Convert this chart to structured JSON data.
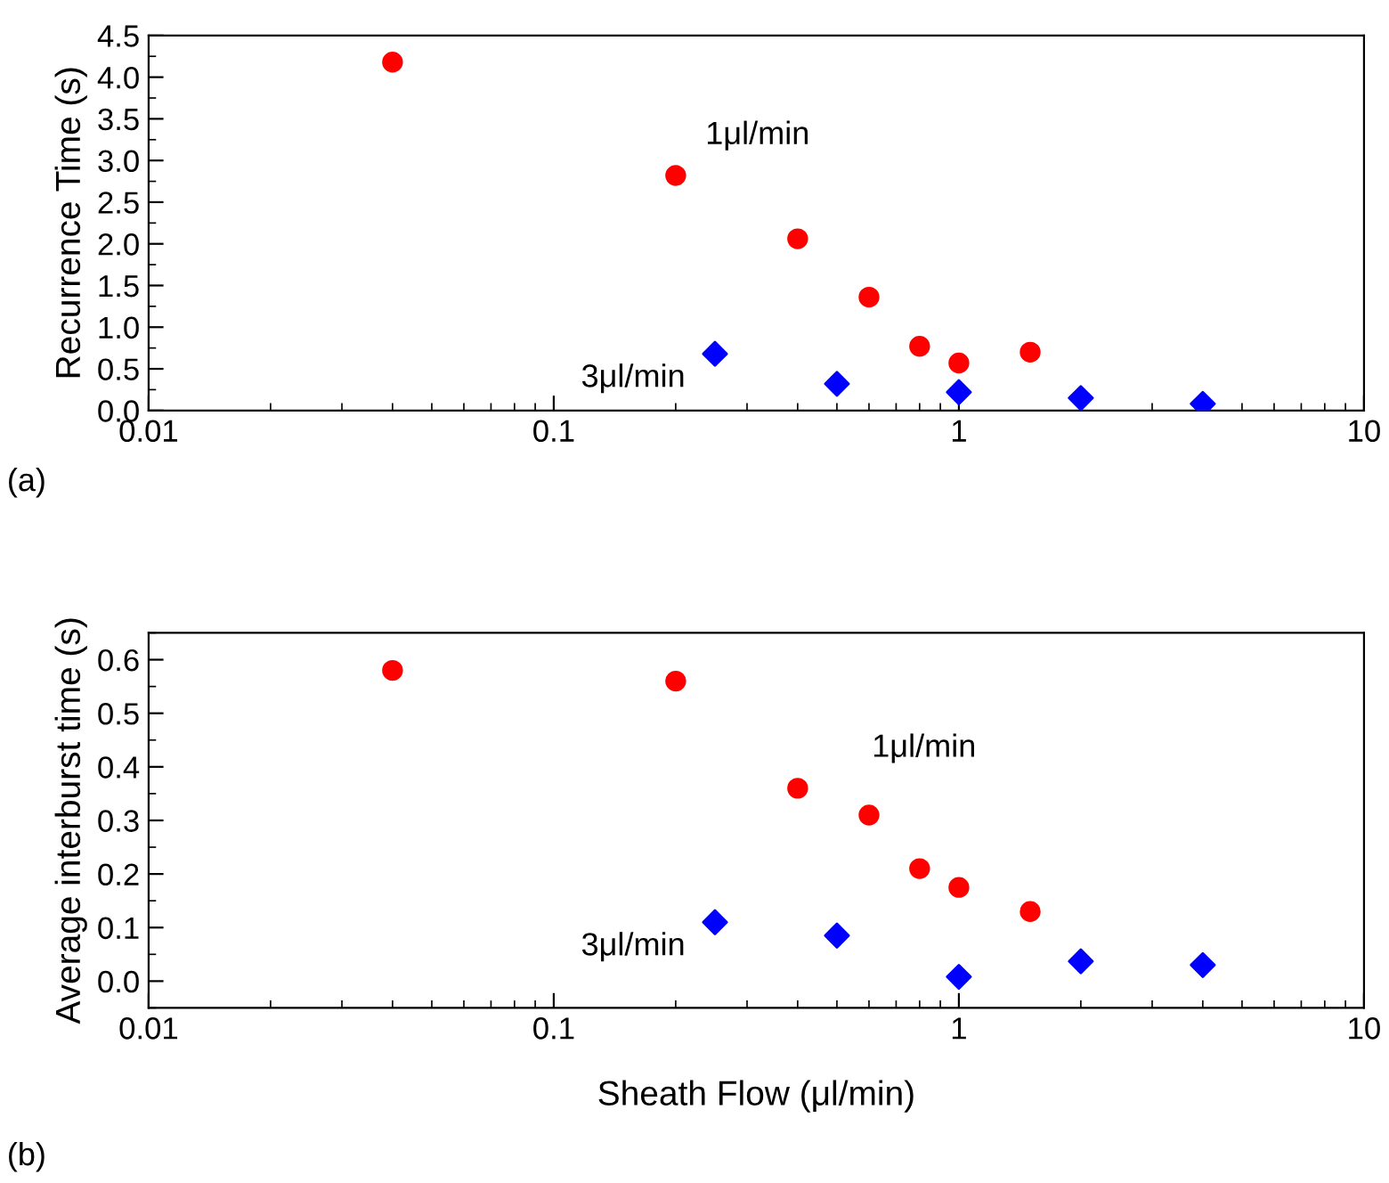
{
  "chart_data": [
    {
      "type": "scatter",
      "ylabel": "Recurrence Time (s)",
      "annotations": [
        "(a)"
      ],
      "log": "x",
      "xlim": [
        0.01,
        10
      ],
      "xticks": [
        0.01,
        0.1,
        1,
        10
      ],
      "ylim": [
        0,
        4.5
      ],
      "yticks": [
        {
          "value": 0,
          "label": "0.0"
        },
        0.5,
        {
          "value": 1,
          "label": "1.0"
        },
        1.5,
        {
          "value": 2,
          "label": "2.0"
        },
        2.5,
        {
          "value": 3,
          "label": "3.0"
        },
        3.5,
        {
          "value": 4,
          "label": "4.0"
        },
        4.5
      ],
      "grid": false,
      "legend": false,
      "series": [
        {
          "name": "1μl/min",
          "color": "#ff0000",
          "marker": "circle",
          "x": [
            0.04,
            0.2,
            0.4,
            0.6,
            0.8,
            1,
            1.5
          ],
          "values": [
            4.18,
            2.82,
            2.06,
            1.36,
            0.77,
            0.57,
            0.7
          ]
        },
        {
          "name": "3μl/min",
          "color": "#0000ff",
          "marker": "diamond",
          "x": [
            0.25,
            0.5,
            1,
            2,
            4
          ],
          "values": [
            0.68,
            0.32,
            0.22,
            0.15,
            0.08
          ]
        }
      ]
    },
    {
      "type": "scatter",
      "xlabel": "Sheath Flow (μl/min)",
      "ylabel": "Average interburst time (s)",
      "annotations": [
        "(b)"
      ],
      "log": "x",
      "xlim": [
        0.01,
        10
      ],
      "xticks": [
        0.01,
        0.1,
        1,
        10
      ],
      "ylim": [
        -0.05,
        0.65
      ],
      "yticks": [
        {
          "value": 0,
          "label": "0.0"
        },
        0.1,
        0.2,
        0.3,
        0.4,
        0.5,
        0.6
      ],
      "grid": false,
      "legend": false,
      "series": [
        {
          "name": "1μl/min",
          "color": "#ff0000",
          "marker": "circle",
          "x": [
            0.04,
            0.2,
            0.4,
            0.6,
            0.8,
            1,
            1.5
          ],
          "values": [
            0.58,
            0.56,
            0.36,
            0.31,
            0.21,
            0.175,
            0.13
          ]
        },
        {
          "name": "3μl/min",
          "color": "#0000ff",
          "marker": "diamond",
          "x": [
            0.25,
            0.5,
            1,
            2,
            4
          ],
          "values": [
            0.11,
            0.085,
            0.008,
            0.037,
            0.03
          ]
        }
      ]
    }
  ]
}
